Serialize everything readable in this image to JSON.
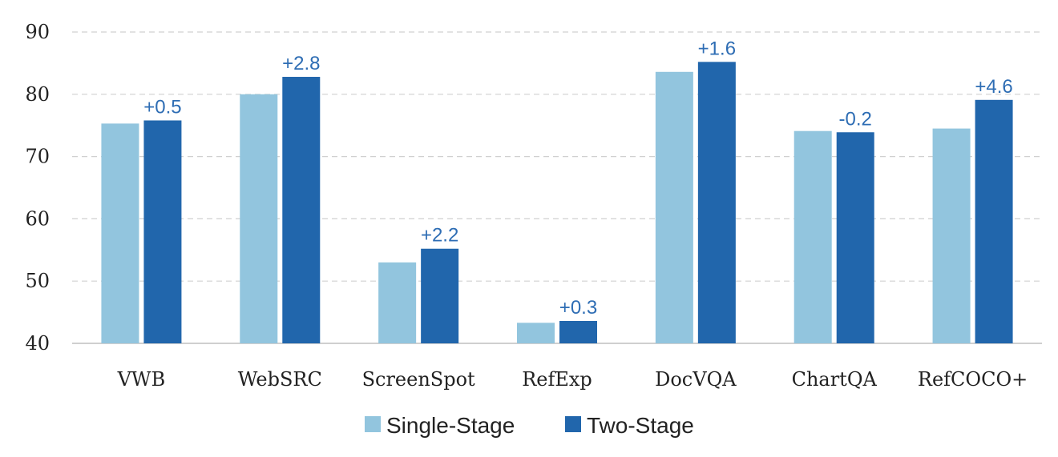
{
  "chart_data": {
    "type": "bar",
    "categories": [
      "VWB",
      "WebSRC",
      "ScreenSpot",
      "RefExp",
      "DocVQA",
      "ChartQA",
      "RefCOCO+"
    ],
    "series": [
      {
        "name": "Single-Stage",
        "color": "#92c5de",
        "values": [
          75.3,
          80.0,
          53.0,
          43.3,
          83.6,
          74.1,
          74.5
        ]
      },
      {
        "name": "Two-Stage",
        "color": "#2166ac",
        "values": [
          75.8,
          82.8,
          55.2,
          43.6,
          85.2,
          73.9,
          79.1
        ]
      }
    ],
    "annotations": [
      "+0.5",
      "+2.8",
      "+2.2",
      "+0.3",
      "+1.6",
      "-0.2",
      "+4.6"
    ],
    "annotation_color": "#2e6db4",
    "y_ticks": [
      "40",
      "50",
      "60",
      "70",
      "80",
      "90"
    ],
    "ylim": [
      40,
      90
    ],
    "grid": true,
    "legend_position": "bottom-center",
    "title": "",
    "xlabel": "",
    "ylabel": ""
  }
}
